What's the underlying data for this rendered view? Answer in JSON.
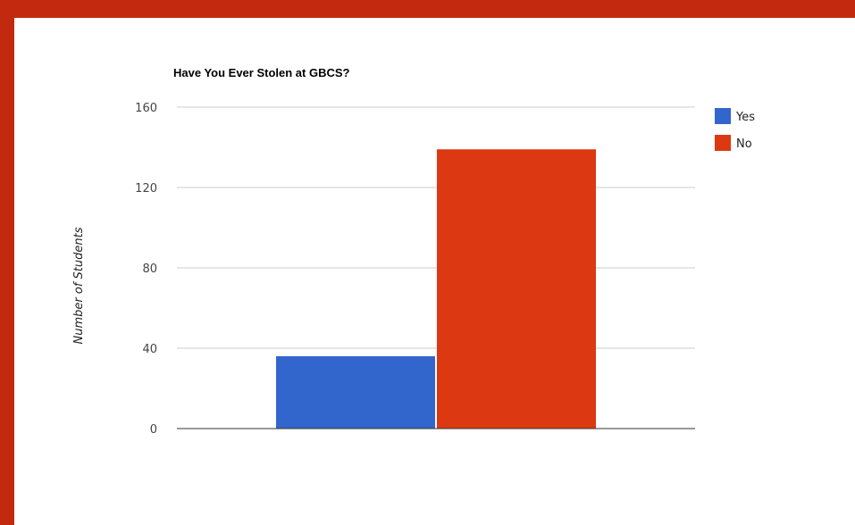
{
  "chart_data": {
    "type": "bar",
    "title": "Have You Ever Stolen at GBCS?",
    "xlabel": "",
    "ylabel": "Number of Students",
    "categories": [
      ""
    ],
    "series": [
      {
        "name": "Yes",
        "values": [
          36
        ],
        "color": "#3366cc"
      },
      {
        "name": "No",
        "values": [
          139
        ],
        "color": "#dc3912"
      }
    ],
    "ylim": [
      0,
      160
    ],
    "yticks": [
      "0",
      "40",
      "80",
      "120",
      "160"
    ],
    "grid": true,
    "legend_position": "right"
  },
  "colors": {
    "frame": "#c3290f",
    "background": "#ffffff",
    "gridline": "#cccccc",
    "baseline": "#333333"
  }
}
